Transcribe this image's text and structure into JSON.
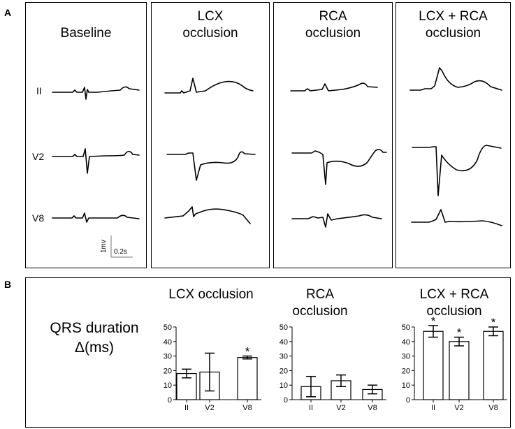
{
  "panel_a": {
    "letter": "A",
    "columns": [
      {
        "title_line1": "Baseline",
        "title_line2": ""
      },
      {
        "title_line1": "LCX",
        "title_line2": "occlusion"
      },
      {
        "title_line1": "RCA",
        "title_line2": "occlusion"
      },
      {
        "title_line1": "LCX + RCA",
        "title_line2": "occlusion"
      }
    ],
    "leads": [
      "II",
      "V2",
      "V8"
    ],
    "scale_bar": {
      "voltage": "1mv",
      "time": "0.2s"
    }
  },
  "panel_b": {
    "letter": "B",
    "ylabel_line1": "QRS duration",
    "ylabel_line2": "Δ(ms)"
  },
  "chart_data": [
    {
      "type": "bar",
      "title": "LCX occlusion",
      "categories": [
        "II",
        "V2",
        "V8"
      ],
      "values": [
        18,
        19,
        29
      ],
      "errors": [
        3,
        13,
        1
      ],
      "significant": [
        false,
        false,
        true
      ],
      "ylim": [
        0,
        50
      ],
      "yticks": [
        0,
        10,
        20,
        30,
        40,
        50
      ],
      "ylabel": "QRS duration Δ(ms)",
      "xlabel": ""
    },
    {
      "type": "bar",
      "title": "RCA occlusion",
      "categories": [
        "II",
        "V2",
        "V8"
      ],
      "values": [
        9,
        13,
        7
      ],
      "errors": [
        7,
        4,
        3
      ],
      "significant": [
        false,
        false,
        false
      ],
      "ylim": [
        0,
        50
      ],
      "yticks": [
        0,
        10,
        20,
        30,
        40,
        50
      ],
      "ylabel": "QRS duration Δ(ms)",
      "xlabel": ""
    },
    {
      "type": "bar",
      "title": "LCX + RCA occlusion",
      "categories": [
        "II",
        "V2",
        "V8"
      ],
      "values": [
        47,
        40,
        47
      ],
      "errors": [
        4,
        3,
        3
      ],
      "significant": [
        true,
        true,
        true
      ],
      "ylim": [
        0,
        50
      ],
      "yticks": [
        0,
        10,
        20,
        30,
        40,
        50
      ],
      "ylabel": "QRS duration Δ(ms)",
      "xlabel": ""
    }
  ],
  "significance_marker": "*"
}
